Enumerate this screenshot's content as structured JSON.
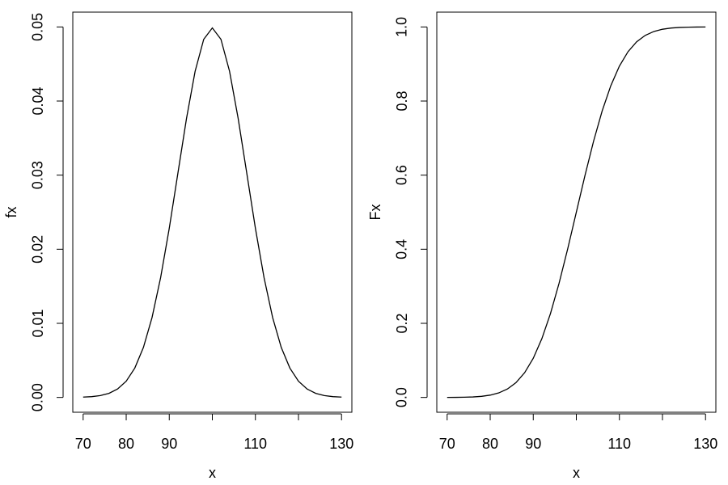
{
  "chart_data": [
    {
      "type": "line",
      "x_label": "x",
      "y_label": "fx",
      "x": [
        70,
        72,
        74,
        76,
        78,
        80,
        82,
        84,
        86,
        88,
        90,
        92,
        94,
        96,
        98,
        100,
        102,
        104,
        106,
        108,
        110,
        112,
        114,
        116,
        118,
        120,
        122,
        124,
        126,
        128,
        130
      ],
      "series": [
        {
          "color": "#000000",
          "values": [
            4.41e-05,
            0.000109,
            0.000254,
            0.000554,
            0.001137,
            0.002191,
            0.003967,
            0.006749,
            0.010785,
            0.01619,
            0.022831,
            0.030247,
            0.037642,
            0.044008,
            0.048334,
            0.049868,
            0.048334,
            0.044008,
            0.037642,
            0.030247,
            0.022831,
            0.01619,
            0.010785,
            0.006749,
            0.003967,
            0.002191,
            0.001137,
            0.000554,
            0.000254,
            0.000109,
            4.41e-05
          ]
        }
      ],
      "xlim": [
        67.6,
        132.4
      ],
      "ylim": [
        -0.002,
        0.052
      ],
      "xticks": [
        70,
        80,
        90,
        {
          "value": 100
        },
        110,
        {
          "value": 120
        },
        130
      ],
      "yticks": [
        {
          "value": 0,
          "label": "0.00"
        },
        0.01,
        0.02,
        0.03,
        0.04,
        0.05
      ]
    },
    {
      "type": "line",
      "x_label": "x",
      "y_label": "Fx",
      "x": [
        70,
        72,
        74,
        76,
        78,
        80,
        82,
        84,
        86,
        88,
        90,
        92,
        94,
        96,
        98,
        100,
        102,
        104,
        106,
        108,
        110,
        112,
        114,
        116,
        118,
        120,
        122,
        124,
        126,
        128,
        130
      ],
      "series": [
        {
          "color": "#000000",
          "values": [
            8.8e-05,
            0.000233,
            0.000577,
            0.00135,
            0.00298,
            0.00621,
            0.01222,
            0.02275,
            0.04006,
            0.06681,
            0.10565,
            0.15866,
            0.22663,
            0.30854,
            0.40129,
            0.5,
            0.59871,
            0.69146,
            0.77337,
            0.84134,
            0.89435,
            0.93319,
            0.95994,
            0.97725,
            0.98778,
            0.99379,
            0.99702,
            0.99865,
            0.99942,
            0.99977,
            0.99991
          ]
        }
      ],
      "xlim": [
        67.6,
        132.4
      ],
      "ylim": [
        -0.04,
        1.04
      ],
      "xticks": [
        70,
        80,
        90,
        {
          "value": 100
        },
        110,
        {
          "value": 120
        },
        130
      ],
      "yticks": [
        {
          "value": 0,
          "label": "0.0"
        },
        0.2,
        0.4,
        0.6,
        0.8,
        {
          "value": 1,
          "label": "1.0"
        }
      ]
    }
  ]
}
